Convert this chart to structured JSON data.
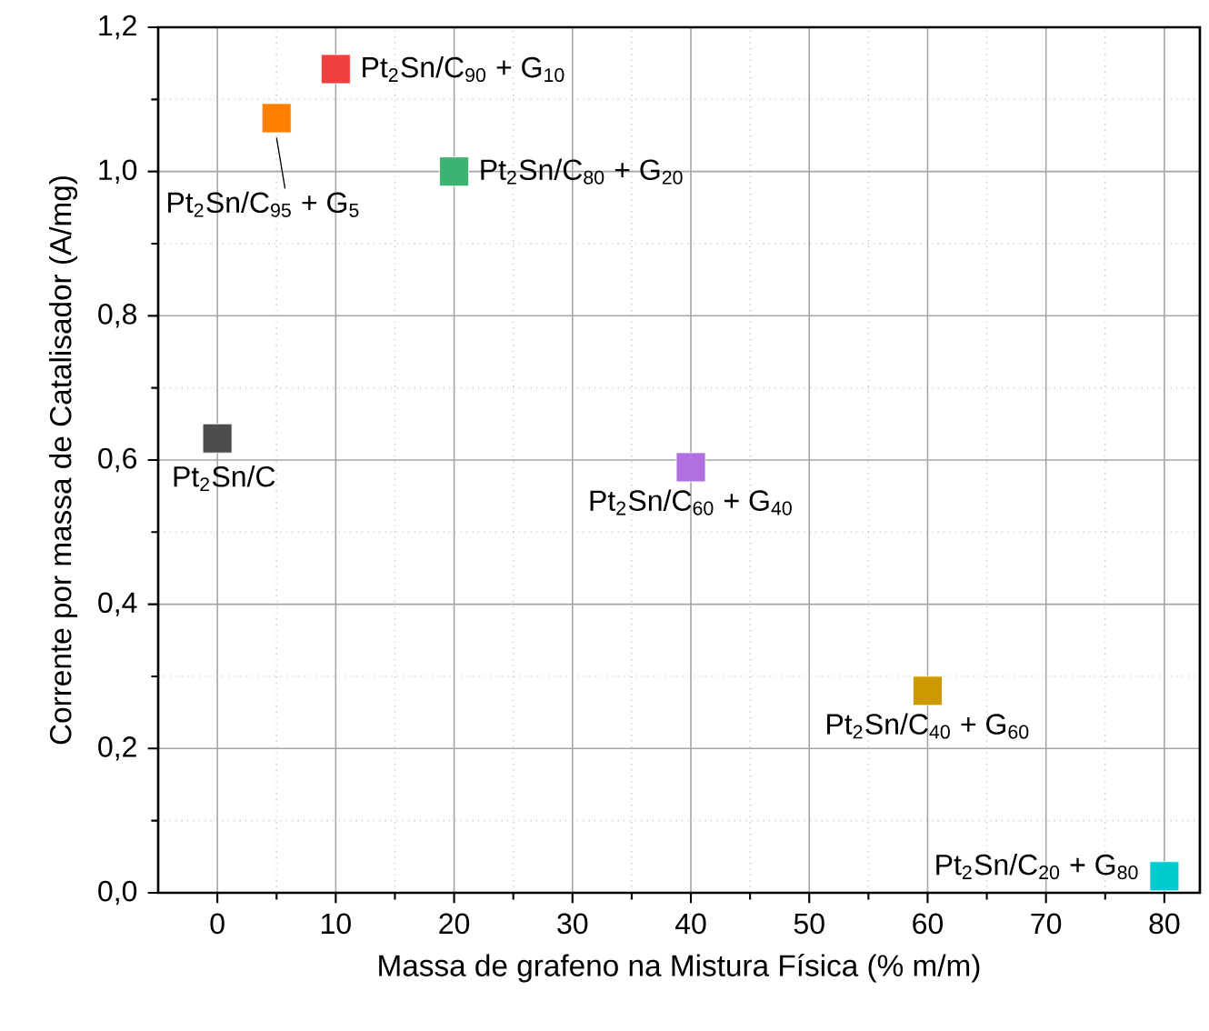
{
  "chart_data": {
    "type": "scatter",
    "xlabel": "Massa de grafeno na Mistura Física (% m/m)",
    "ylabel": "Corrente por massa de Catalisador (A/mg)",
    "x": [
      0,
      5,
      10,
      20,
      40,
      60,
      80
    ],
    "series": [
      {
        "values": [
          0.63,
          1.074,
          1.142,
          1.0,
          0.59,
          0.28,
          0.023
        ],
        "colors": [
          "#4d4d4d",
          "#ff7f00",
          "#f04040",
          "#3cb371",
          "#b070e0",
          "#cc9900",
          "#00cccc"
        ]
      }
    ],
    "marker": "square",
    "xlim": [
      -5,
      83
    ],
    "ylim": [
      0,
      1.2
    ],
    "xticks": [
      0,
      10,
      20,
      30,
      40,
      50,
      60,
      70,
      80
    ],
    "yticks": [
      {
        "value": 0,
        "label": "0,0"
      },
      {
        "value": 0.2,
        "label": "0,2"
      },
      {
        "value": 0.4,
        "label": "0,4"
      },
      {
        "value": 0.6,
        "label": "0,6"
      },
      {
        "value": 0.8,
        "label": "0,8"
      },
      {
        "value": 1.0,
        "label": "1,0"
      },
      {
        "value": 1.2,
        "label": "1,2"
      }
    ],
    "grid": true,
    "annotations": [
      {
        "text": "Pt$_{2}$Sn/C",
        "x": 0,
        "y": 0.63
      },
      {
        "text": "Pt$_{2}$Sn/C$_{95}$ + G$_{5}$",
        "x": 5,
        "y": 1.074
      },
      {
        "text": "Pt$_{2}$Sn/C$_{90}$ + G$_{10}$",
        "x": 10,
        "y": 1.142
      },
      {
        "text": "Pt$_{2}$Sn/C$_{80}$ + G$_{20}$",
        "x": 20,
        "y": 1.0
      },
      {
        "text": "Pt$_{2}$Sn/C$_{60}$ + G$_{40}$",
        "x": 40,
        "y": 0.59
      },
      {
        "text": "Pt$_{2}$Sn/C$_{40}$ + G$_{60}$",
        "x": 60,
        "y": 0.28
      },
      {
        "text": "Pt$_{2}$Sn/C$_{20}$ + G$_{80}$",
        "x": 80,
        "y": 0.023
      }
    ]
  }
}
